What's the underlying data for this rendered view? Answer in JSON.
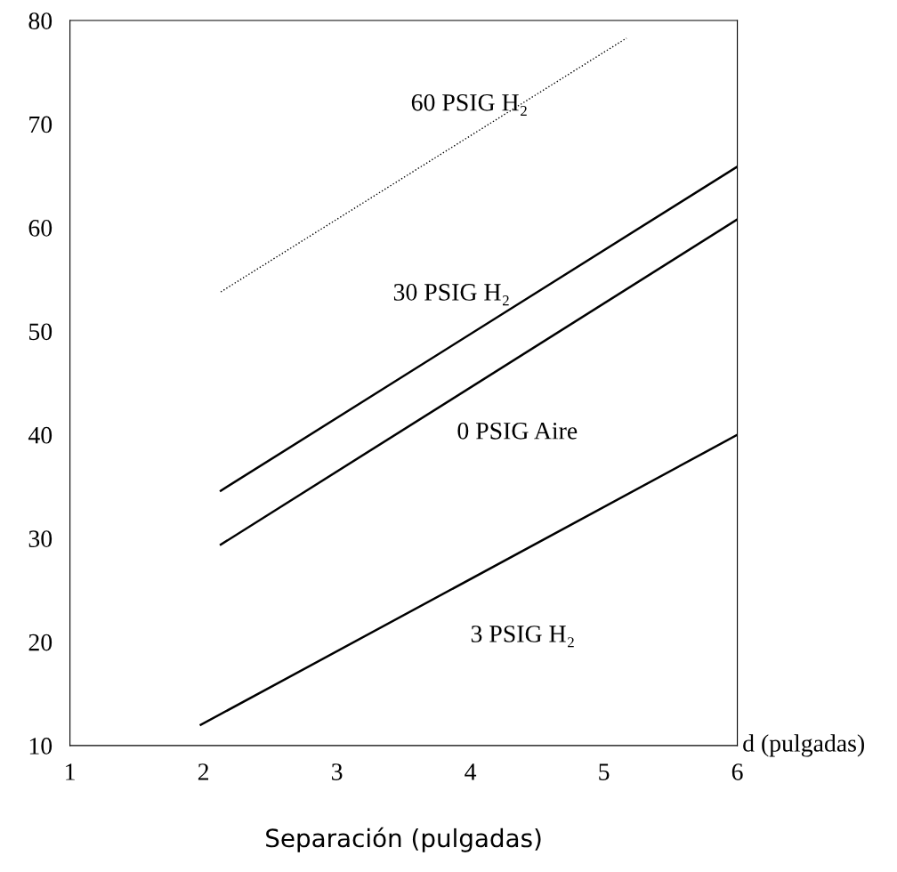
{
  "chart_data": {
    "type": "line",
    "xlabel": "Separación (pulgadas)",
    "xlim": [
      1,
      6
    ],
    "xticks": [
      1,
      2,
      3,
      4,
      5,
      6
    ],
    "ylim": [
      10,
      80
    ],
    "yticks": [
      10,
      20,
      30,
      40,
      50,
      60,
      70,
      80
    ],
    "grid": false,
    "marker": "none",
    "series": [
      {
        "name": "60 PSIG H₂",
        "color": "#000000",
        "line_style": "dotted",
        "x": [
          2.13,
          5.17
        ],
        "values": [
          53.8,
          78.3
        ]
      },
      {
        "name": "30 PSIG H₂",
        "color": "#000000",
        "line_style": "solid",
        "x": [
          2.13,
          6
        ],
        "values": [
          34.6,
          65.9
        ]
      },
      {
        "name": "0 PSIG Aire",
        "color": "#000000",
        "line_style": "solid",
        "x": [
          2.13,
          6
        ],
        "values": [
          29.4,
          60.8
        ]
      },
      {
        "name": "3 PSIG H₂",
        "color": "#000000",
        "line_style": "solid",
        "x": [
          1.98,
          6
        ],
        "values": [
          12.0,
          40.0
        ]
      }
    ],
    "annotations": [
      "d (pulgadas)"
    ]
  }
}
